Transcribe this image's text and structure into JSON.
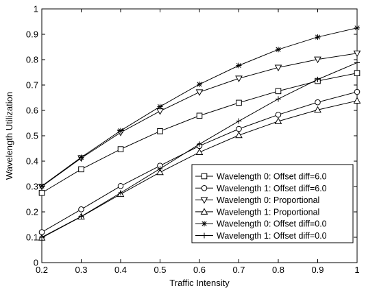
{
  "chart_data": {
    "type": "line",
    "title": "",
    "xlabel": "Traffic Intensity",
    "ylabel": "Wavelength Utilization",
    "xlim": [
      0.2,
      1
    ],
    "ylim": [
      0,
      1
    ],
    "x_ticks": [
      0.2,
      0.3,
      0.4,
      0.5,
      0.6,
      0.7,
      0.8,
      0.9,
      1
    ],
    "x_tick_labels": [
      "0.2",
      "0.3",
      "0.4",
      "0.5",
      "0.6",
      "0.7",
      "0.8",
      "0.9",
      "1"
    ],
    "y_ticks": [
      0,
      0.1,
      0.2,
      0.3,
      0.4,
      0.5,
      0.6,
      0.7,
      0.8,
      0.9,
      1
    ],
    "y_tick_labels": [
      "0",
      "0.1",
      "0.2",
      "0.3",
      "0.4",
      "0.5",
      "0.6",
      "0.7",
      "0.8",
      "0.9",
      "1"
    ],
    "grid": false,
    "legend_position": "lower-right",
    "x": [
      0.2,
      0.3,
      0.4,
      0.5,
      0.6,
      0.7,
      0.8,
      0.9,
      1.0
    ],
    "series": [
      {
        "name": "Wavelength 0: Offset diff=6.0",
        "marker": "square",
        "values": [
          0.275,
          0.368,
          0.447,
          0.518,
          0.579,
          0.63,
          0.676,
          0.716,
          0.747
        ]
      },
      {
        "name": "Wavelength 1: Offset diff=6.0",
        "marker": "circle",
        "values": [
          0.12,
          0.21,
          0.302,
          0.382,
          0.46,
          0.527,
          0.583,
          0.632,
          0.673
        ]
      },
      {
        "name": "Wavelength 0: Proportional",
        "marker": "triangle-down",
        "values": [
          0.3,
          0.412,
          0.513,
          0.597,
          0.672,
          0.726,
          0.769,
          0.801,
          0.825
        ]
      },
      {
        "name": "Wavelength 1: Proportional",
        "marker": "triangle-up",
        "values": [
          0.098,
          0.181,
          0.27,
          0.356,
          0.435,
          0.502,
          0.557,
          0.602,
          0.638
        ]
      },
      {
        "name": "Wavelength 0: Offset diff=0.0",
        "marker": "asterisk",
        "values": [
          0.302,
          0.415,
          0.52,
          0.615,
          0.703,
          0.777,
          0.84,
          0.889,
          0.925
        ]
      },
      {
        "name": "Wavelength 1: Offset diff=0.0",
        "marker": "plus",
        "values": [
          0.1,
          0.182,
          0.275,
          0.37,
          0.467,
          0.558,
          0.645,
          0.722,
          0.788
        ]
      }
    ]
  }
}
